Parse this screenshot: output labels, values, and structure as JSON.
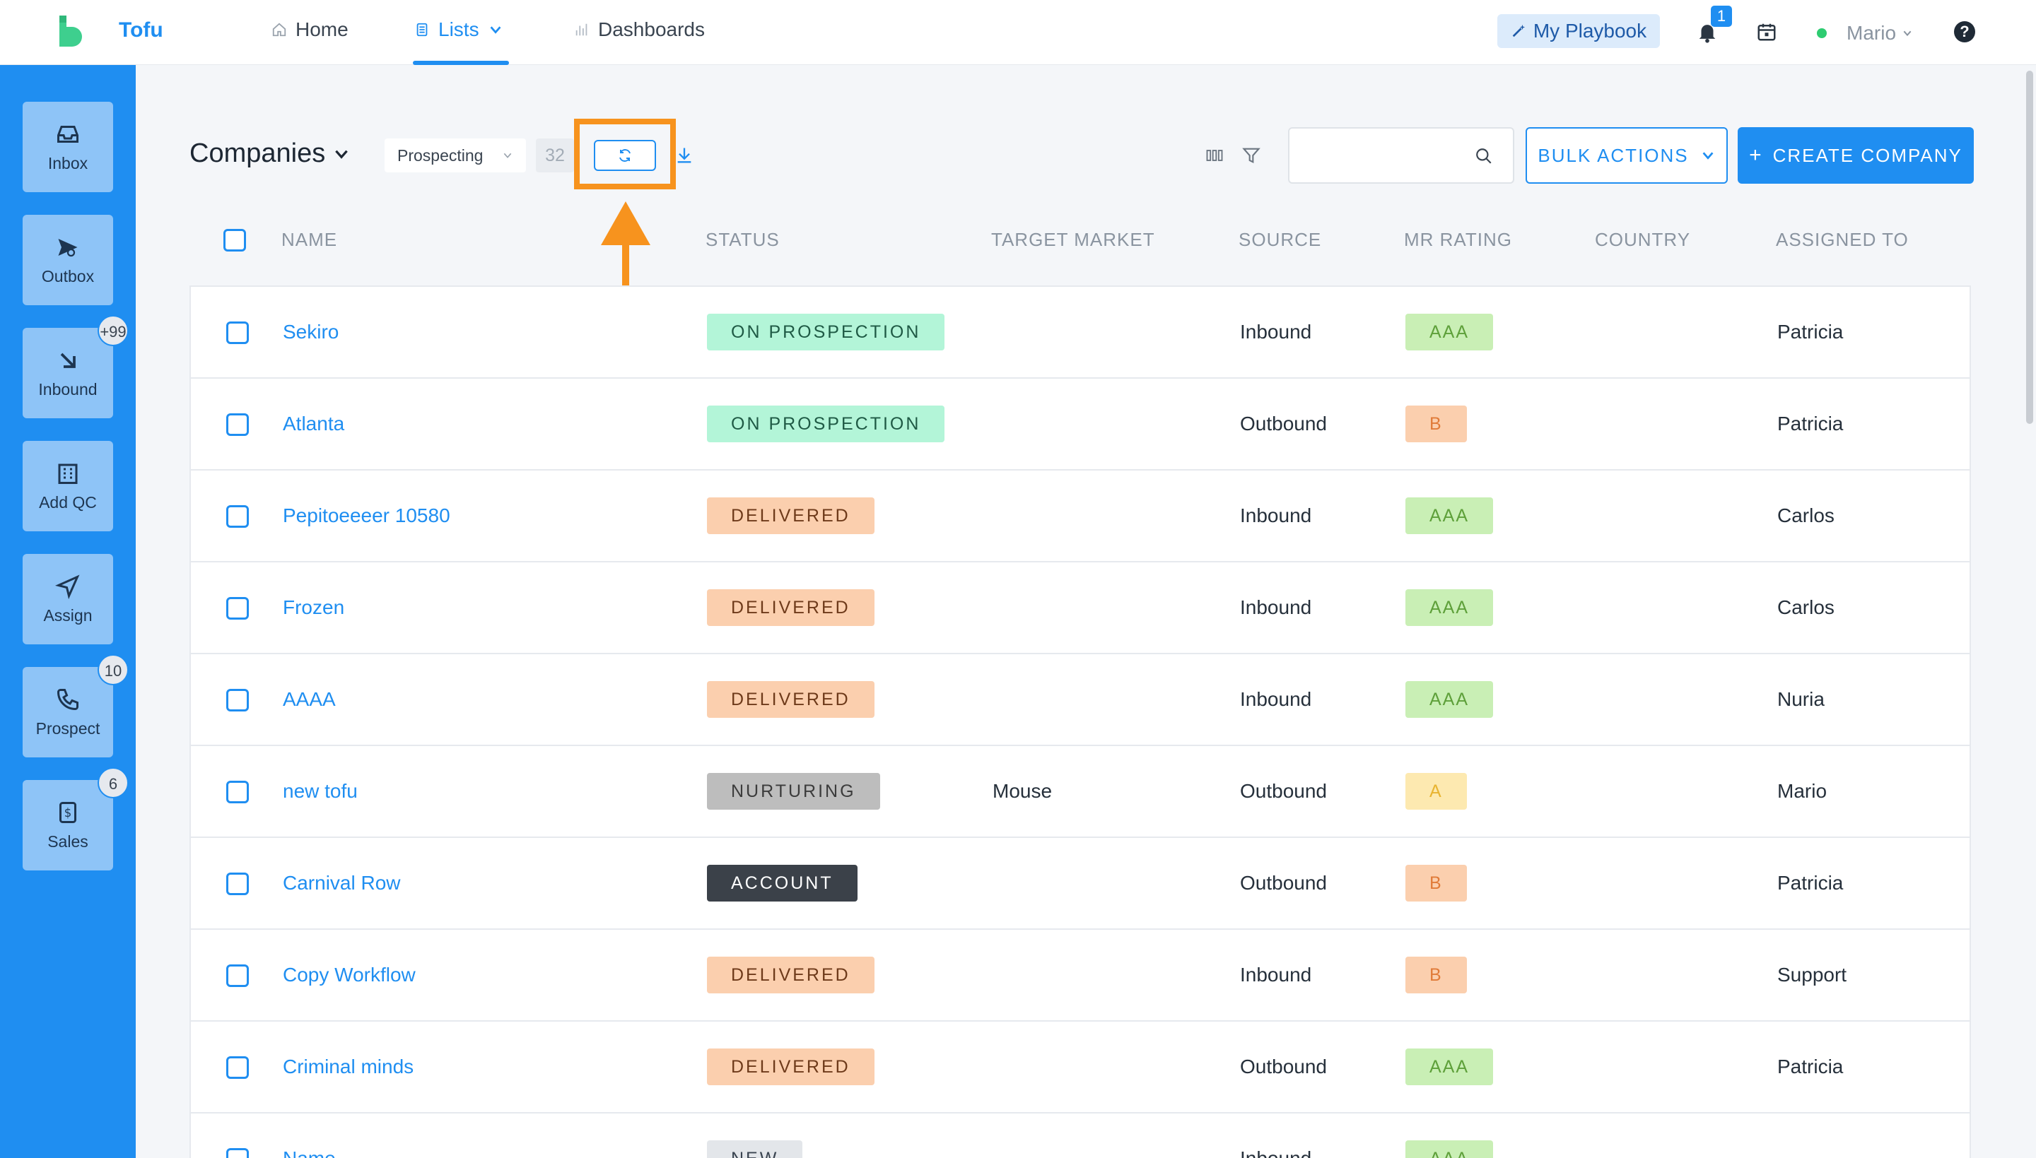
{
  "app": {
    "name": "Tofu"
  },
  "nav": {
    "home": "Home",
    "lists": "Lists",
    "dashboards": "Dashboards",
    "playbook": "My Playbook",
    "notifications_count": "1",
    "user": "Mario",
    "help": "?"
  },
  "sidebar": {
    "items": [
      {
        "label": "Inbox",
        "icon": "inbox-icon",
        "badge": ""
      },
      {
        "label": "Outbox",
        "icon": "send-icon",
        "badge": ""
      },
      {
        "label": "Inbound",
        "icon": "arrow-down-right-icon",
        "badge": "+99"
      },
      {
        "label": "Add QC",
        "icon": "building-icon",
        "badge": ""
      },
      {
        "label": "Assign",
        "icon": "navigation-icon",
        "badge": ""
      },
      {
        "label": "Prospect",
        "icon": "phone-icon",
        "badge": "10"
      },
      {
        "label": "Sales",
        "icon": "dollar-icon",
        "badge": "6"
      }
    ]
  },
  "toolbar": {
    "title": "Companies",
    "segment": "Prospecting",
    "count": "32",
    "search_placeholder": "",
    "bulk_actions": "BULK ACTIONS",
    "create": "CREATE COMPANY"
  },
  "table": {
    "headers": {
      "name": "NAME",
      "status": "STATUS",
      "target_market": "TARGET MARKET",
      "source": "SOURCE",
      "mr_rating": "MR RATING",
      "country": "COUNTRY",
      "assigned_to": "ASSIGNED TO"
    },
    "rows": [
      {
        "name": "Sekiro",
        "status": "ON PROSPECTION",
        "status_kind": "prospection",
        "target_market": "",
        "source": "Inbound",
        "rating": "AAA",
        "rating_kind": "aaa",
        "country": "",
        "assigned": "Patricia"
      },
      {
        "name": "Atlanta",
        "status": "ON PROSPECTION",
        "status_kind": "prospection",
        "target_market": "",
        "source": "Outbound",
        "rating": "B",
        "rating_kind": "b",
        "country": "",
        "assigned": "Patricia"
      },
      {
        "name": "Pepitoeeeer 10580",
        "status": "DELIVERED",
        "status_kind": "delivered",
        "target_market": "",
        "source": "Inbound",
        "rating": "AAA",
        "rating_kind": "aaa",
        "country": "",
        "assigned": "Carlos"
      },
      {
        "name": "Frozen",
        "status": "DELIVERED",
        "status_kind": "delivered",
        "target_market": "",
        "source": "Inbound",
        "rating": "AAA",
        "rating_kind": "aaa",
        "country": "",
        "assigned": "Carlos"
      },
      {
        "name": "AAAA",
        "status": "DELIVERED",
        "status_kind": "delivered",
        "target_market": "",
        "source": "Inbound",
        "rating": "AAA",
        "rating_kind": "aaa",
        "country": "",
        "assigned": "Nuria"
      },
      {
        "name": "new tofu",
        "status": "NURTURING",
        "status_kind": "nurturing",
        "target_market": "Mouse",
        "source": "Outbound",
        "rating": "A",
        "rating_kind": "a",
        "country": "",
        "assigned": "Mario"
      },
      {
        "name": "Carnival Row",
        "status": "ACCOUNT",
        "status_kind": "account",
        "target_market": "",
        "source": "Outbound",
        "rating": "B",
        "rating_kind": "b",
        "country": "",
        "assigned": "Patricia"
      },
      {
        "name": "Copy Workflow",
        "status": "DELIVERED",
        "status_kind": "delivered",
        "target_market": "",
        "source": "Inbound",
        "rating": "B",
        "rating_kind": "b",
        "country": "",
        "assigned": "Support"
      },
      {
        "name": "Criminal minds",
        "status": "DELIVERED",
        "status_kind": "delivered",
        "target_market": "",
        "source": "Outbound",
        "rating": "AAA",
        "rating_kind": "aaa",
        "country": "",
        "assigned": "Patricia"
      },
      {
        "name": "Name",
        "status": "NEW",
        "status_kind": "new",
        "target_market": "",
        "source": "Inbound",
        "rating": "AAA",
        "rating_kind": "aaa",
        "country": "",
        "assigned": ""
      }
    ]
  },
  "colors": {
    "brand": "#1f8ef1",
    "highlight": "#f7931e",
    "logo": "#3ecf8e"
  }
}
